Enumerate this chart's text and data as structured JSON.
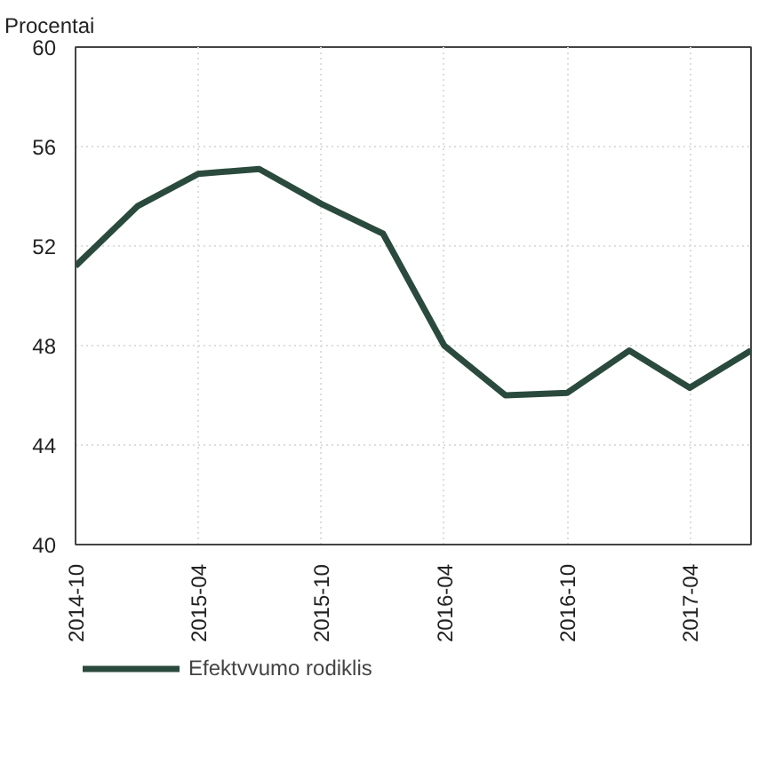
{
  "chart_data": {
    "type": "line",
    "ylabel": "Procentai",
    "x": [
      "2014-10",
      "2015-01",
      "2015-04",
      "2015-07",
      "2015-10",
      "2016-01",
      "2016-04",
      "2016-07",
      "2016-10",
      "2017-01",
      "2017-04",
      "2017-07"
    ],
    "series": [
      {
        "name": "Efektvvumo rodiklis",
        "color": "#2b4a3e",
        "values": [
          51.2,
          53.6,
          54.9,
          55.1,
          53.7,
          52.5,
          48.0,
          46.0,
          46.1,
          47.8,
          46.3,
          47.8
        ]
      }
    ],
    "xlim": [
      "2014-10",
      "2017-07"
    ],
    "xticks": [
      "2014-10",
      "2015-04",
      "2015-10",
      "2016-04",
      "2016-10",
      "2017-04"
    ],
    "ylim": [
      40,
      60
    ],
    "yticks": [
      40,
      44,
      48,
      52,
      56,
      60
    ],
    "grid": true,
    "legend": "bottom",
    "marker": "none",
    "line_style": "solid"
  }
}
